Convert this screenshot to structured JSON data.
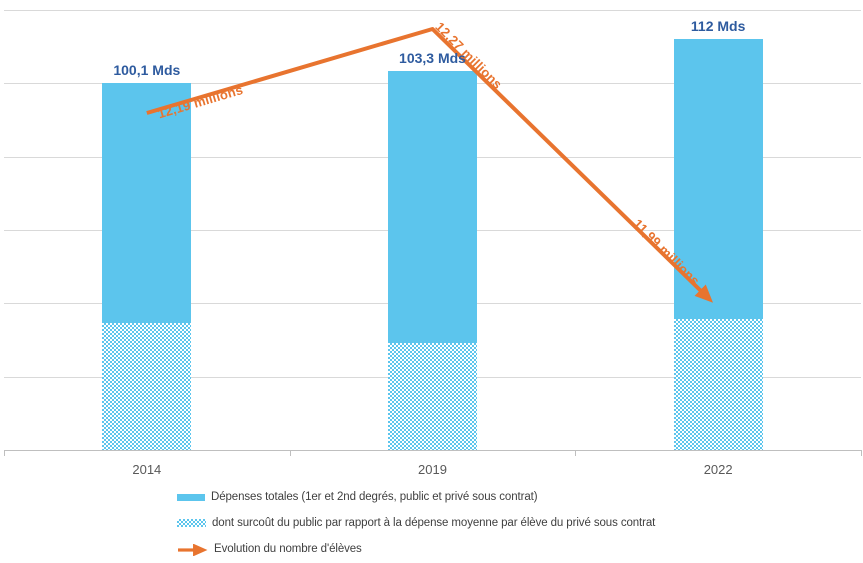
{
  "colors": {
    "bar_blue": "#5CC5ED",
    "orange": "#E8742F",
    "value_label_blue": "#2E5B9F",
    "axis_text_gray": "#595959",
    "legend_text_gray": "#3F3F3F",
    "gridline_gray": "#D9D9D9",
    "axis_line_gray": "#BFBFBF"
  },
  "chart_data": {
    "type": "bar",
    "categories": [
      "2014",
      "2019",
      "2022"
    ],
    "ylim": [
      0,
      120
    ],
    "grid": true,
    "legend_position": "bottom",
    "series": [
      {
        "name": "Dépenses totales (1er et 2nd degrés, public et privé sous contrat)",
        "type": "bar",
        "unit": "Mds",
        "values": [
          100.1,
          103.3,
          112
        ],
        "value_labels": [
          "100,1 Mds",
          "103,3 Mds",
          "112 Mds"
        ]
      },
      {
        "name": "dont surcoût du public par rapport à la dépense moyenne par élève du privé sous contrat",
        "type": "bar-overlay-hatched",
        "unit": "Mds",
        "values": [
          34.6,
          29.2,
          35.7
        ]
      },
      {
        "name": "Evolution du nombre d'élèves",
        "type": "line-arrow",
        "unit": "millions",
        "values": [
          12.19,
          12.27,
          11.99
        ],
        "value_labels": [
          "12,19 millions",
          "12,27 millions",
          "11,99 millions"
        ]
      }
    ]
  }
}
